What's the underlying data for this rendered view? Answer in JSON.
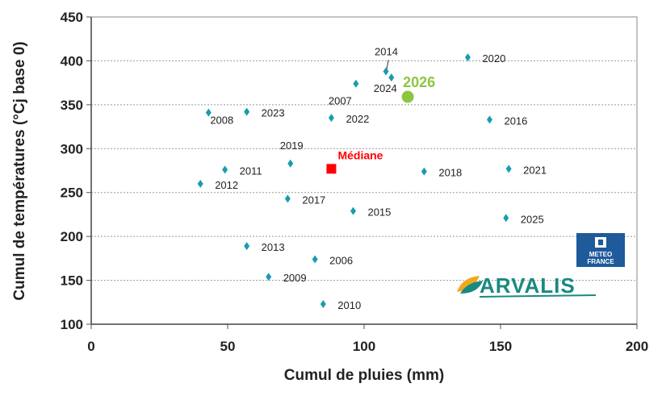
{
  "chart_data": {
    "type": "scatter",
    "xlabel": "Cumul de pluies (mm)",
    "ylabel": "Cumul de températures (°Cj base 0)",
    "xlim": [
      0,
      200
    ],
    "ylim": [
      100,
      450
    ],
    "xticks": [
      0,
      50,
      100,
      150,
      200
    ],
    "yticks": [
      100,
      150,
      200,
      250,
      300,
      350,
      400,
      450
    ],
    "grid": "horizontal dashed",
    "points": [
      {
        "label": "2006",
        "x": 82,
        "y": 174
      },
      {
        "label": "2007",
        "x": 97,
        "y": 374
      },
      {
        "label": "2008",
        "x": 43,
        "y": 341
      },
      {
        "label": "2009",
        "x": 65,
        "y": 154
      },
      {
        "label": "2010",
        "x": 85,
        "y": 123
      },
      {
        "label": "2011",
        "x": 49,
        "y": 276
      },
      {
        "label": "2012",
        "x": 40,
        "y": 260
      },
      {
        "label": "2013",
        "x": 57,
        "y": 189
      },
      {
        "label": "2014",
        "x": 108,
        "y": 388
      },
      {
        "label": "2015",
        "x": 96,
        "y": 229
      },
      {
        "label": "2016",
        "x": 146,
        "y": 333
      },
      {
        "label": "2017",
        "x": 72,
        "y": 243
      },
      {
        "label": "2018",
        "x": 122,
        "y": 274
      },
      {
        "label": "2019",
        "x": 73,
        "y": 283
      },
      {
        "label": "2020",
        "x": 138,
        "y": 404
      },
      {
        "label": "2021",
        "x": 153,
        "y": 277
      },
      {
        "label": "2022",
        "x": 88,
        "y": 335
      },
      {
        "label": "2023",
        "x": 57,
        "y": 342
      },
      {
        "label": "2024",
        "x": 110,
        "y": 381
      },
      {
        "label": "2025",
        "x": 152,
        "y": 221
      }
    ],
    "highlight": {
      "label": "2026",
      "x": 116,
      "y": 359,
      "color": "#8cc63f"
    },
    "median": {
      "label": "Médiane",
      "x": 88,
      "y": 277,
      "color": "#ff0000"
    },
    "point_color": "#1a9bb0"
  },
  "logos": {
    "meteo_france": "METEO FRANCE",
    "arvalis": "ARVALIS"
  }
}
